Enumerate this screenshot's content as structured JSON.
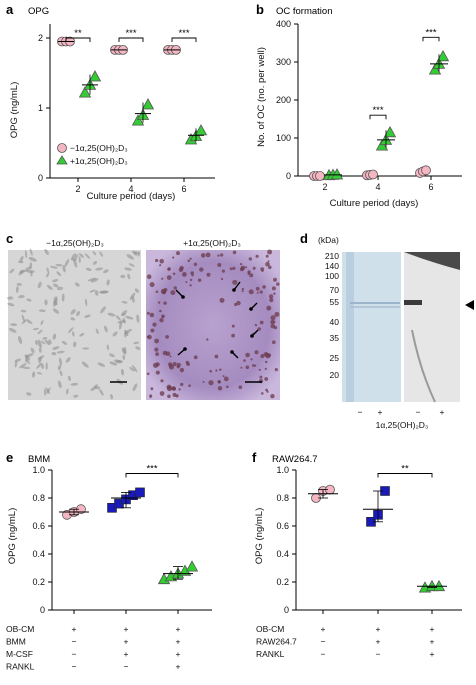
{
  "panels": {
    "a": {
      "letter": "a",
      "title": "OPG",
      "ylabel": "OPG (ng/mL)",
      "xlabel": "Culture period (days)",
      "yticks": [
        "0",
        "1",
        "2"
      ],
      "xticks": [
        "2",
        "4",
        "6"
      ],
      "sig": [
        "**",
        "***",
        "***"
      ],
      "legend": [
        "−1α,25(OH)₂D₃",
        "+1α,25(OH)₂D₃"
      ]
    },
    "b": {
      "letter": "b",
      "title": "OC formation",
      "ylabel": "No. of OC (no. per well)",
      "xlabel": "Culture period (days)",
      "yticks": [
        "0",
        "100",
        "200",
        "300",
        "400"
      ],
      "xticks": [
        "2",
        "4",
        "6"
      ],
      "sig": [
        "***",
        "***"
      ]
    },
    "c": {
      "letter": "c",
      "left_title": "−1α,25(OH)₂D₃",
      "right_title": "+1α,25(OH)₂D₃"
    },
    "d": {
      "letter": "d",
      "kda_label": "(kDa)",
      "markers": [
        "210",
        "140",
        "100",
        "70",
        "55",
        "40",
        "35",
        "25",
        "20"
      ],
      "lane_signs": [
        "−",
        "+",
        "−",
        "+"
      ],
      "caption": "1α,25(OH)₂D₃"
    },
    "e": {
      "letter": "e",
      "title": "BMM",
      "ylabel": "OPG (ng/mL)",
      "yticks": [
        "0",
        "0.2",
        "0.4",
        "0.6",
        "0.8",
        "1.0"
      ],
      "sig": "***",
      "rows": [
        {
          "label": "OB-CM",
          "signs": [
            "+",
            "+",
            "+"
          ]
        },
        {
          "label": "BMM",
          "signs": [
            "−",
            "+",
            "+"
          ]
        },
        {
          "label": "M-CSF",
          "signs": [
            "−",
            "+",
            "+"
          ]
        },
        {
          "label": "RANKL",
          "signs": [
            "−",
            "−",
            "+"
          ]
        }
      ]
    },
    "f": {
      "letter": "f",
      "title": "RAW264.7",
      "ylabel": "OPG (ng/mL)",
      "yticks": [
        "0",
        "0.2",
        "0.4",
        "0.6",
        "0.8",
        "1.0"
      ],
      "sig": "**",
      "rows": [
        {
          "label": "OB-CM",
          "signs": [
            "+",
            "+",
            "+"
          ]
        },
        {
          "label": "RAW264.7",
          "signs": [
            "−",
            "+",
            "+"
          ]
        },
        {
          "label": "RANKL",
          "signs": [
            "−",
            "−",
            "+"
          ]
        }
      ]
    }
  },
  "colors": {
    "pink": "#f4b6c2",
    "green": "#33cc33",
    "blue": "#1a1ab8"
  },
  "chart_data": [
    {
      "type": "scatter",
      "panel": "a",
      "x": [
        2,
        4,
        6
      ],
      "ylim": [
        0,
        2.2
      ],
      "series": [
        {
          "name": "−1α,25(OH)₂D₃",
          "marker": "circle",
          "points": [
            [
              1.95,
              1.95,
              1.95
            ],
            [
              1.83,
              1.83,
              1.83
            ],
            [
              1.83,
              1.83,
              1.83
            ]
          ],
          "mean": [
            1.95,
            1.83,
            1.83
          ]
        },
        {
          "name": "+1α,25(OH)₂D₃",
          "marker": "triangle",
          "points": [
            [
              1.22,
              1.33,
              1.45
            ],
            [
              0.82,
              0.9,
              1.05
            ],
            [
              0.55,
              0.6,
              0.68
            ]
          ],
          "mean": [
            1.33,
            0.92,
            0.61
          ]
        }
      ]
    },
    {
      "type": "scatter",
      "panel": "b",
      "x": [
        2,
        4,
        6
      ],
      "ylim": [
        0,
        400
      ],
      "series": [
        {
          "name": "−1α,25(OH)₂D₃",
          "marker": "circle",
          "points": [
            [
              0,
              0,
              0
            ],
            [
              2,
              3,
              4
            ],
            [
              8,
              12,
              15
            ]
          ],
          "mean": [
            0,
            3,
            12
          ]
        },
        {
          "name": "+1α,25(OH)₂D₃",
          "marker": "triangle",
          "points": [
            [
              2,
              3,
              4
            ],
            [
              80,
              95,
              115
            ],
            [
              280,
              295,
              315
            ]
          ],
          "mean": [
            3,
            95,
            295
          ]
        }
      ]
    },
    {
      "type": "scatter",
      "panel": "e",
      "categories": [
        "1",
        "2",
        "3"
      ],
      "ylim": [
        0,
        1.0
      ],
      "groups": [
        {
          "marker": "circle",
          "color": "pink",
          "points": [
            0.68,
            0.7,
            0.72
          ],
          "mean": 0.7
        },
        {
          "marker": "square",
          "color": "blue",
          "points": [
            0.73,
            0.76,
            0.79,
            0.82,
            0.84
          ],
          "mean": 0.8
        },
        {
          "marker": "triangle",
          "color": "green",
          "points": [
            0.22,
            0.24,
            0.26,
            0.28,
            0.31
          ],
          "mean": 0.26
        }
      ]
    },
    {
      "type": "scatter",
      "panel": "f",
      "categories": [
        "1",
        "2",
        "3"
      ],
      "ylim": [
        0,
        1.0
      ],
      "groups": [
        {
          "marker": "circle",
          "color": "pink",
          "points": [
            0.8,
            0.85,
            0.86
          ],
          "mean": 0.83
        },
        {
          "marker": "square",
          "color": "blue",
          "points": [
            0.63,
            0.68,
            0.85
          ],
          "mean": 0.72
        },
        {
          "marker": "triangle",
          "color": "green",
          "points": [
            0.16,
            0.17,
            0.17
          ],
          "mean": 0.17
        }
      ]
    }
  ]
}
